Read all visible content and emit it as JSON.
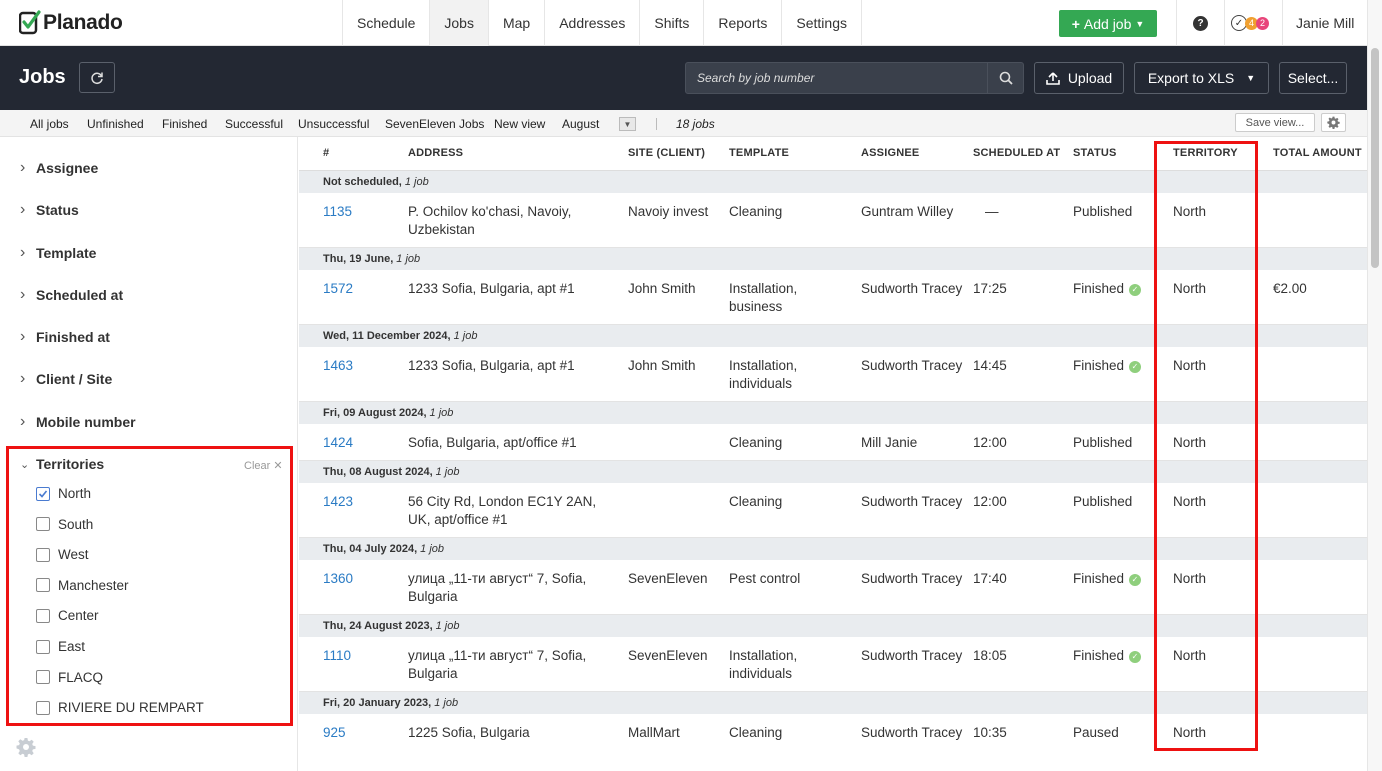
{
  "app": {
    "name": "Planado",
    "user": "Janie Mill"
  },
  "nav": {
    "tabs": [
      "Schedule",
      "Jobs",
      "Map",
      "Addresses",
      "Shifts",
      "Reports",
      "Settings"
    ],
    "active": "Jobs",
    "add_job": "Add job",
    "help": "?",
    "notif_a": "4",
    "notif_b": "2"
  },
  "header": {
    "title": "Jobs",
    "search_placeholder": "Search by job number",
    "upload": "Upload",
    "export": "Export to XLS",
    "select": "Select..."
  },
  "views": {
    "tabs": [
      "All jobs",
      "Unfinished",
      "Finished",
      "Successful",
      "Unsuccessful",
      "SevenEleven Jobs",
      "New view",
      "August"
    ],
    "count": "18 jobs",
    "save_view": "Save view..."
  },
  "filters": {
    "groups": [
      "Assignee",
      "Status",
      "Template",
      "Scheduled at",
      "Finished at",
      "Client / Site",
      "Mobile number"
    ],
    "territories": {
      "label": "Territories",
      "clear": "Clear",
      "options": [
        {
          "label": "North",
          "checked": true
        },
        {
          "label": "South",
          "checked": false
        },
        {
          "label": "West",
          "checked": false
        },
        {
          "label": "Manchester",
          "checked": false
        },
        {
          "label": "Center",
          "checked": false
        },
        {
          "label": "East",
          "checked": false
        },
        {
          "label": "FLACQ",
          "checked": false
        },
        {
          "label": "RIVIERE DU REMPART",
          "checked": false
        }
      ]
    }
  },
  "table": {
    "columns": [
      "#",
      "ADDRESS",
      "SITE (CLIENT)",
      "TEMPLATE",
      "ASSIGNEE",
      "SCHEDULED AT",
      "STATUS",
      "TERRITORY",
      "TOTAL AMOUNT"
    ],
    "groups": [
      {
        "date": "Not scheduled,",
        "count": "1 job",
        "rows": [
          {
            "id": "1135",
            "address": "P. Ochilov ko'chasi, Navoiy, Uzbekistan",
            "site": "Navoiy invest",
            "template": "Cleaning",
            "assignee": "Guntram Willey",
            "scheduled": "—",
            "status": "Published",
            "ok": false,
            "territory": "North",
            "total": ""
          }
        ]
      },
      {
        "date": "Thu, 19 June,",
        "count": "1 job",
        "rows": [
          {
            "id": "1572",
            "address": "1233 Sofia, Bulgaria, apt #1",
            "site": "John Smith",
            "template": "Installation, business",
            "assignee": "Sudworth Tracey",
            "scheduled": "17:25",
            "status": "Finished",
            "ok": true,
            "territory": "North",
            "total": "€2.00"
          }
        ]
      },
      {
        "date": "Wed, 11 December 2024,",
        "count": "1 job",
        "rows": [
          {
            "id": "1463",
            "address": "1233 Sofia, Bulgaria, apt #1",
            "site": "John Smith",
            "template": "Installation, individuals",
            "assignee": "Sudworth Tracey",
            "scheduled": "14:45",
            "status": "Finished",
            "ok": true,
            "territory": "North",
            "total": ""
          }
        ]
      },
      {
        "date": "Fri, 09 August 2024,",
        "count": "1 job",
        "rows": [
          {
            "id": "1424",
            "address": "Sofia, Bulgaria, apt/office #1",
            "site": "",
            "template": "Cleaning",
            "assignee": "Mill Janie",
            "scheduled": "12:00",
            "status": "Published",
            "ok": false,
            "territory": "North",
            "total": ""
          }
        ]
      },
      {
        "date": "Thu, 08 August 2024,",
        "count": "1 job",
        "rows": [
          {
            "id": "1423",
            "address": "56 City Rd, London EC1Y 2AN, UK, apt/office #1",
            "site": "",
            "template": "Cleaning",
            "assignee": "Sudworth Tracey",
            "scheduled": "12:00",
            "status": "Published",
            "ok": false,
            "territory": "North",
            "total": ""
          }
        ]
      },
      {
        "date": "Thu, 04 July 2024,",
        "count": "1 job",
        "rows": [
          {
            "id": "1360",
            "address": "улица „11-ти август“ 7, Sofia, Bulgaria",
            "site": "SevenEleven",
            "template": "Pest control",
            "assignee": "Sudworth Tracey",
            "scheduled": "17:40",
            "status": "Finished",
            "ok": true,
            "territory": "North",
            "total": ""
          }
        ]
      },
      {
        "date": "Thu, 24 August 2023,",
        "count": "1 job",
        "rows": [
          {
            "id": "1110",
            "address": "улица „11-ти август“ 7, Sofia, Bulgaria",
            "site": "SevenEleven",
            "template": "Installation, individuals",
            "assignee": "Sudworth Tracey",
            "scheduled": "18:05",
            "status": "Finished",
            "ok": true,
            "territory": "North",
            "total": ""
          }
        ]
      },
      {
        "date": "Fri, 20 January 2023,",
        "count": "1 job",
        "rows": [
          {
            "id": "925",
            "address": "1225 Sofia, Bulgaria",
            "site": "MallMart",
            "template": "Cleaning",
            "assignee": "Sudworth Tracey",
            "scheduled": "10:35",
            "status": "Paused",
            "ok": false,
            "territory": "North",
            "total": ""
          }
        ]
      }
    ]
  },
  "colors": {
    "brand_green": "#34a853",
    "header_dark": "#232833",
    "link_blue": "#2a7bc4",
    "highlight_red": "#ee1111",
    "badge_orange": "#f0a030",
    "badge_pink": "#e8457a"
  }
}
